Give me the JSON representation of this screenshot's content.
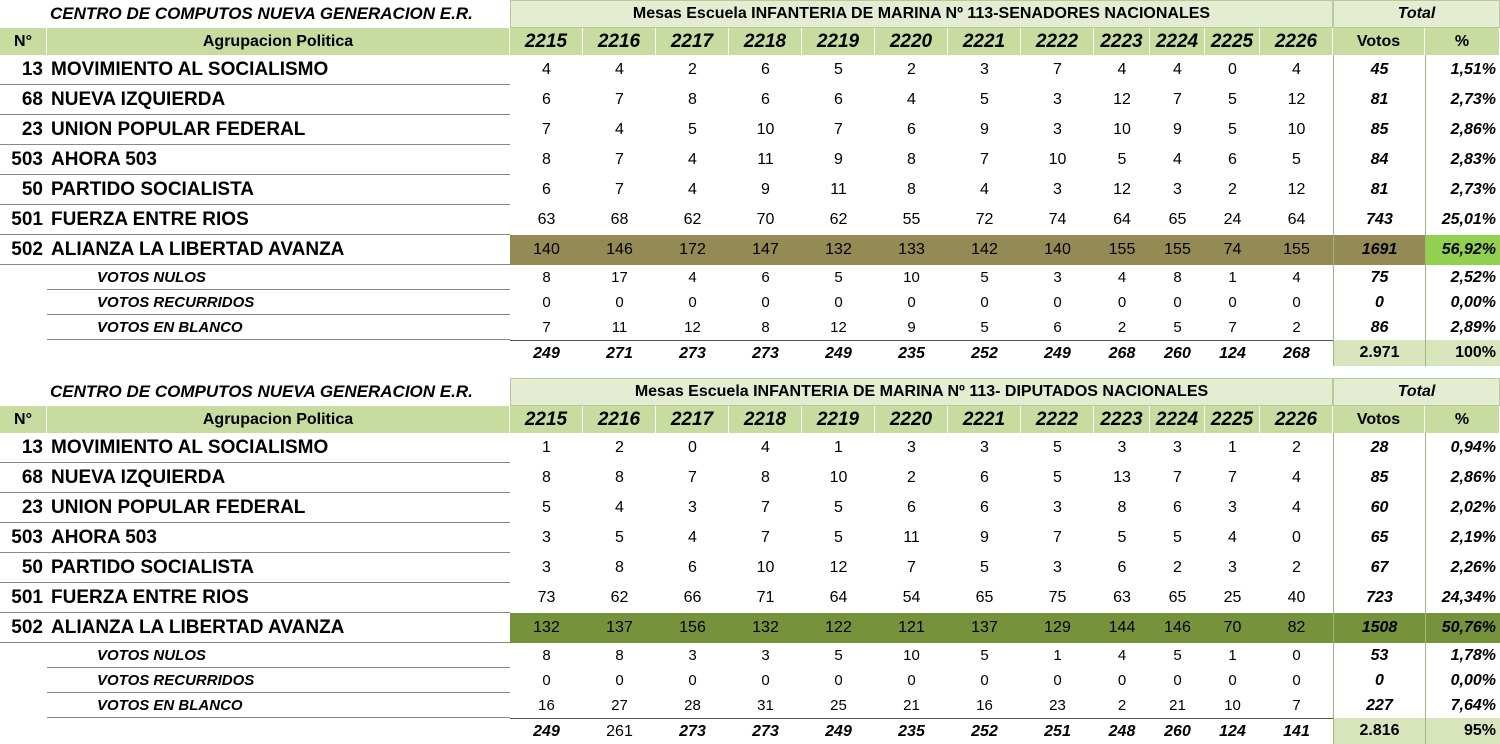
{
  "tables": [
    {
      "title": "CENTRO DE COMPUTOS NUEVA GENERACION E.R.",
      "subtitle": "Mesas Escuela INFANTERIA DE MARINA Nº 113-SENADORES NACIONALES",
      "total_label": "Total",
      "header": {
        "number": "N°",
        "party": "Agrupacion Politica",
        "mesas": [
          "2215",
          "2216",
          "2217",
          "2218",
          "2219",
          "2220",
          "2221",
          "2222",
          "2223",
          "2224",
          "2225",
          "2226"
        ],
        "votes": "Votos",
        "percent": "%"
      },
      "rows": [
        {
          "number": "13",
          "party": "MOVIMIENTO AL SOCIALISMO",
          "values": [
            4,
            4,
            2,
            6,
            5,
            2,
            3,
            7,
            4,
            4,
            0,
            4
          ],
          "votes": 45,
          "percent": "1,51%"
        },
        {
          "number": "68",
          "party": "NUEVA IZQUIERDA",
          "values": [
            6,
            7,
            8,
            6,
            6,
            4,
            5,
            3,
            12,
            7,
            5,
            12
          ],
          "votes": 81,
          "percent": "2,73%"
        },
        {
          "number": "23",
          "party": "UNION POPULAR FEDERAL",
          "values": [
            7,
            4,
            5,
            10,
            7,
            6,
            9,
            3,
            10,
            9,
            5,
            10
          ],
          "votes": 85,
          "percent": "2,86%"
        },
        {
          "number": "503",
          "party": "AHORA 503",
          "values": [
            8,
            7,
            4,
            11,
            9,
            8,
            7,
            10,
            5,
            4,
            6,
            5
          ],
          "votes": 84,
          "percent": "2,83%"
        },
        {
          "number": "50",
          "party": "PARTIDO SOCIALISTA",
          "values": [
            6,
            7,
            4,
            9,
            11,
            8,
            4,
            3,
            12,
            3,
            2,
            12
          ],
          "votes": 81,
          "percent": "2,73%"
        },
        {
          "number": "501",
          "party": "FUERZA ENTRE RIOS",
          "values": [
            63,
            68,
            62,
            70,
            62,
            55,
            72,
            74,
            64,
            65,
            24,
            64
          ],
          "votes": 743,
          "percent": "25,01%"
        },
        {
          "number": "502",
          "party": "ALIANZA LA LIBERTAD AVANZA",
          "values": [
            140,
            146,
            172,
            147,
            132,
            133,
            142,
            140,
            155,
            155,
            74,
            155
          ],
          "votes": 1691,
          "percent": "56,92%"
        },
        {
          "party": "VOTOS NULOS",
          "values": [
            8,
            17,
            4,
            6,
            5,
            10,
            5,
            3,
            4,
            8,
            1,
            4
          ],
          "votes": 75,
          "percent": "2,52%"
        },
        {
          "party": "VOTOS RECURRIDOS",
          "values": [
            0,
            0,
            0,
            0,
            0,
            0,
            0,
            0,
            0,
            0,
            0,
            0
          ],
          "votes": 0,
          "percent": "0,00%"
        },
        {
          "party": "VOTOS EN BLANCO",
          "values": [
            7,
            11,
            12,
            8,
            12,
            9,
            5,
            6,
            2,
            5,
            7,
            2
          ],
          "votes": 86,
          "percent": "2,89%"
        }
      ],
      "totals": {
        "values": [
          249,
          271,
          273,
          273,
          249,
          235,
          252,
          249,
          268,
          260,
          124,
          268
        ],
        "votes": "2.971",
        "percent": "100%"
      }
    },
    {
      "title": "CENTRO DE COMPUTOS NUEVA GENERACION E.R.",
      "subtitle": "Mesas Escuela INFANTERIA DE MARINA Nº 113- DIPUTADOS NACIONALES",
      "total_label": "Total",
      "header": {
        "number": "N°",
        "party": "Agrupacion Politica",
        "mesas": [
          "2215",
          "2216",
          "2217",
          "2218",
          "2219",
          "2220",
          "2221",
          "2222",
          "2223",
          "2224",
          "2225",
          "2226"
        ],
        "votes": "Votos",
        "percent": "%"
      },
      "rows": [
        {
          "number": "13",
          "party": "MOVIMIENTO AL SOCIALISMO",
          "values": [
            1,
            2,
            0,
            4,
            1,
            3,
            3,
            5,
            3,
            3,
            1,
            2
          ],
          "votes": 28,
          "percent": "0,94%"
        },
        {
          "number": "68",
          "party": "NUEVA IZQUIERDA",
          "values": [
            8,
            8,
            7,
            8,
            10,
            2,
            6,
            5,
            13,
            7,
            7,
            4
          ],
          "votes": 85,
          "percent": "2,86%"
        },
        {
          "number": "23",
          "party": "UNION POPULAR FEDERAL",
          "values": [
            5,
            4,
            3,
            7,
            5,
            6,
            6,
            3,
            8,
            6,
            3,
            4
          ],
          "votes": 60,
          "percent": "2,02%"
        },
        {
          "number": "503",
          "party": "AHORA 503",
          "values": [
            3,
            5,
            4,
            7,
            5,
            11,
            9,
            7,
            5,
            5,
            4,
            0
          ],
          "votes": 65,
          "percent": "2,19%"
        },
        {
          "number": "50",
          "party": "PARTIDO SOCIALISTA",
          "values": [
            3,
            8,
            6,
            10,
            12,
            7,
            5,
            3,
            6,
            2,
            3,
            2
          ],
          "votes": 67,
          "percent": "2,26%"
        },
        {
          "number": "501",
          "party": "FUERZA ENTRE RIOS",
          "values": [
            73,
            62,
            66,
            71,
            64,
            54,
            65,
            75,
            63,
            65,
            25,
            40
          ],
          "votes": 723,
          "percent": "24,34%"
        },
        {
          "number": "502",
          "party": "ALIANZA LA LIBERTAD AVANZA",
          "values": [
            132,
            137,
            156,
            132,
            122,
            121,
            137,
            129,
            144,
            146,
            70,
            82
          ],
          "votes": 1508,
          "percent": "50,76%"
        },
        {
          "party": "VOTOS NULOS",
          "values": [
            8,
            8,
            3,
            3,
            5,
            10,
            5,
            1,
            4,
            5,
            1,
            0
          ],
          "votes": 53,
          "percent": "1,78%"
        },
        {
          "party": "VOTOS RECURRIDOS",
          "values": [
            0,
            0,
            0,
            0,
            0,
            0,
            0,
            0,
            0,
            0,
            0,
            0
          ],
          "votes": 0,
          "percent": "0,00%"
        },
        {
          "party": "VOTOS EN BLANCO",
          "values": [
            16,
            27,
            28,
            31,
            25,
            21,
            16,
            23,
            2,
            21,
            10,
            7
          ],
          "votes": 227,
          "percent": "7,64%"
        }
      ],
      "totals": {
        "values": [
          249,
          261,
          273,
          273,
          249,
          235,
          252,
          251,
          248,
          260,
          124,
          141
        ],
        "votes": "2.816",
        "percent": "95%"
      }
    }
  ]
}
